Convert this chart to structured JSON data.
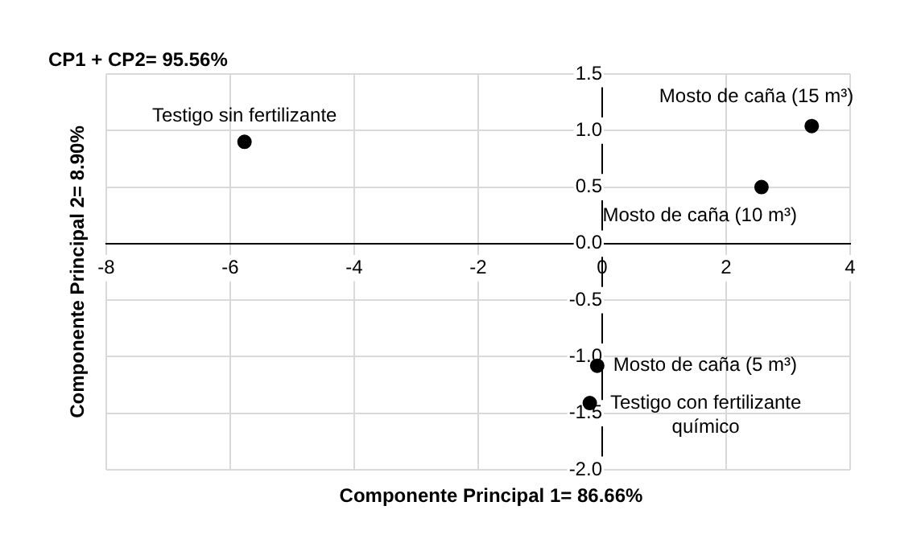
{
  "chart_data": {
    "type": "scatter",
    "title": "CP1 + CP2= 95.56%",
    "xlabel": "Componente Principal 1= 86.66%",
    "ylabel": "Componente Principal 2= 8.90%",
    "series": [
      {
        "name": "Testigo sin fertilizante",
        "color": "#000000",
        "x": [
          -5.77
        ],
        "values": [
          0.9
        ]
      },
      {
        "name": "Mosto de caña (15 m³)",
        "color": "#000000",
        "x": [
          3.38
        ],
        "values": [
          1.04
        ]
      },
      {
        "name": "Mosto de caña (10 m³)",
        "color": "#000000",
        "x": [
          2.57
        ],
        "values": [
          0.5
        ]
      },
      {
        "name": "Mosto de caña (5 m³)",
        "color": "#000000",
        "x": [
          -0.08
        ],
        "values": [
          -1.08
        ]
      },
      {
        "name": "Testigo con fertilizante químico",
        "color": "#000000",
        "x": [
          -0.2
        ],
        "values": [
          -1.41
        ]
      }
    ],
    "xlim": [
      -8,
      4
    ],
    "xticks": [
      -8,
      -6,
      -4,
      -2,
      0,
      2,
      4
    ],
    "ylim": [
      -2,
      1.5
    ],
    "yticks": [
      {
        "value": -2,
        "label": "-2.0"
      },
      {
        "value": -1.5,
        "label": "-1.5"
      },
      {
        "value": -1,
        "label": "-1.0"
      },
      {
        "value": -0.5,
        "label": "-0.5"
      },
      {
        "value": 0,
        "label": "0.0"
      },
      {
        "value": 0.5,
        "label": "0.5"
      },
      {
        "value": 1,
        "label": "1.0"
      },
      {
        "value": 1.5,
        "label": "1.5"
      }
    ],
    "grid": true,
    "legend": false,
    "marker": "circle"
  }
}
